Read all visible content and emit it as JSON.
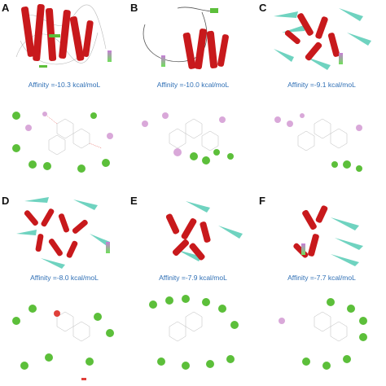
{
  "panels": [
    {
      "letter": "A",
      "affinity": "Affinity =-10.3 kcal/moL",
      "style": "helix"
    },
    {
      "letter": "B",
      "affinity": "Affinity =-10.0 kcal/moL",
      "style": "helix-loop"
    },
    {
      "letter": "C",
      "affinity": "Affinity =-9.1 kcal/moL",
      "style": "sheet"
    },
    {
      "letter": "D",
      "affinity": "Affinity =-8.0 kcal/moL",
      "style": "dense"
    },
    {
      "letter": "E",
      "affinity": "Affinity =-7.9 kcal/moL",
      "style": "dense2"
    },
    {
      "letter": "F",
      "affinity": "Affinity =-7.7 kcal/moL",
      "style": "sheet2"
    }
  ],
  "colors": {
    "helix": "#c8191c",
    "sheet": "#6fd3c0",
    "loop": "#d0d0d0",
    "affinity_text": "#2f6fb5",
    "green_residue": "#5cbf3a",
    "pink_residue": "#d9a8d9",
    "red_bond": "#e0403a"
  },
  "icons": {
    "hbond_legend": "hbond-gradient-legend-icon",
    "residue_marker": "residue-circle-icon"
  }
}
